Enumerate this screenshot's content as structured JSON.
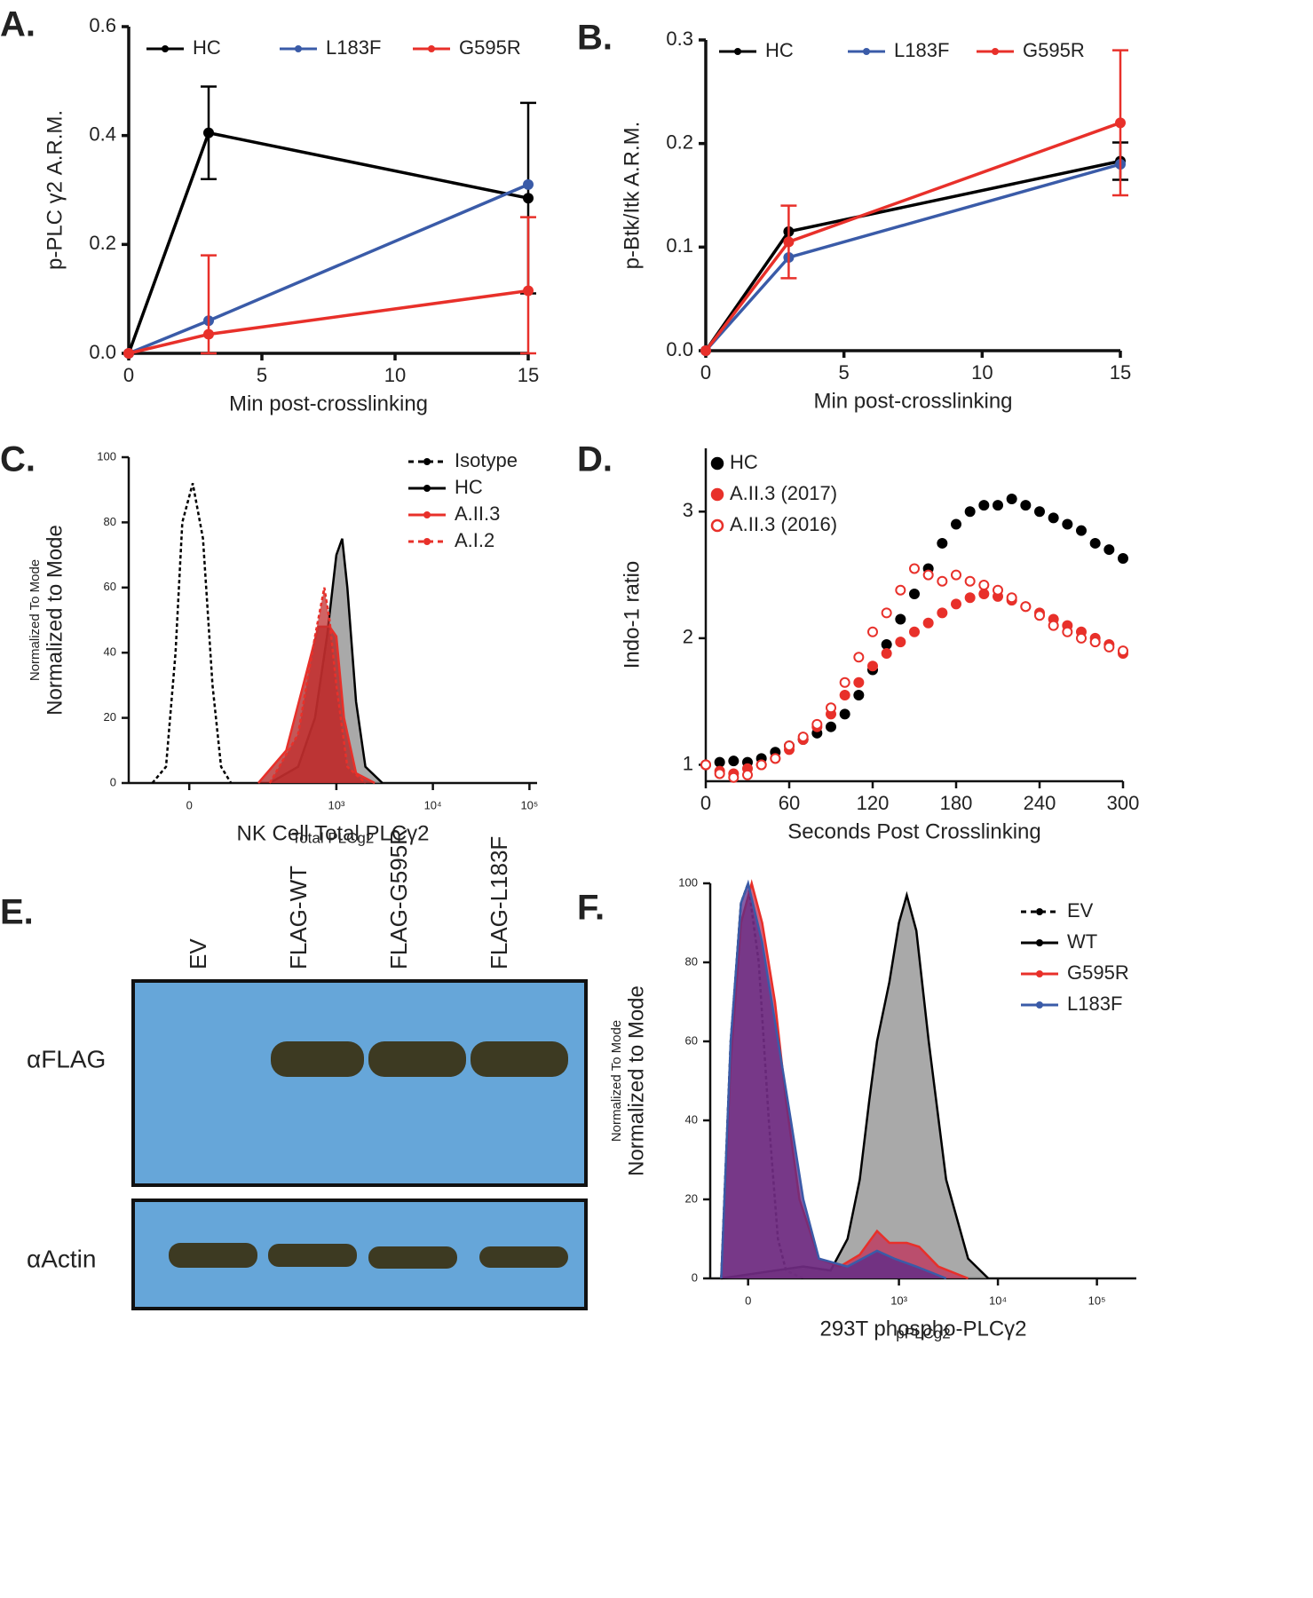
{
  "chart_data": [
    {
      "type": "line",
      "panel_label": "A.",
      "ylabel": "p-PLC γ2 A.R.M.",
      "xlabel": "Min post-crosslinking",
      "x": [
        0,
        3,
        15
      ],
      "xlim": [
        0,
        15
      ],
      "xticks": [
        0,
        5,
        10,
        15
      ],
      "ylim": [
        0,
        0.6
      ],
      "yticks": [
        {
          "value": 0,
          "label": "0.0"
        },
        0.2,
        0.4,
        0.6
      ],
      "legend": "top",
      "series": [
        {
          "name": "HC",
          "color": "#000000",
          "values": [
            0,
            0.405,
            0.285
          ],
          "errors": [
            null,
            0.085,
            0.175
          ]
        },
        {
          "name": "L183F",
          "color": "#3a5ba8",
          "values": [
            0,
            0.06,
            0.31
          ]
        },
        {
          "name": "G595R",
          "color": "#e8302a",
          "values": [
            0,
            0.035,
            0.115
          ],
          "errors": [
            null,
            0.145,
            0.135
          ]
        }
      ]
    },
    {
      "type": "line",
      "panel_label": "B.",
      "ylabel": "p-Btk/Itk A.R.M.",
      "xlabel": "Min post-crosslinking",
      "x": [
        0,
        3,
        15
      ],
      "xlim": [
        0,
        15
      ],
      "xticks": [
        0,
        5,
        10,
        15
      ],
      "ylim": [
        0,
        0.3
      ],
      "yticks": [
        {
          "value": 0,
          "label": "0.0"
        },
        0.1,
        0.2,
        0.3
      ],
      "legend": "top",
      "series": [
        {
          "name": "HC",
          "color": "#000000",
          "values": [
            0,
            0.115,
            0.183
          ],
          "errors": [
            null,
            null,
            0.018
          ]
        },
        {
          "name": "L183F",
          "color": "#3a5ba8",
          "values": [
            0,
            0.09,
            0.18
          ]
        },
        {
          "name": "G595R",
          "color": "#e8302a",
          "values": [
            0,
            0.105,
            0.22
          ],
          "errors": [
            null,
            0.035,
            0.07
          ]
        }
      ]
    },
    {
      "type": "area",
      "panel_label": "C.",
      "ylabel": "Normalized to Mode",
      "ylabel_small": "Normalized To Mode",
      "xlabel": "NK Cell Total PLCγ2",
      "xlabel_small": "Total PLCg2",
      "xscale": "biexponential",
      "xlim": [
        -120,
        120000
      ],
      "xticks": [
        0,
        {
          "value": 1000,
          "label": "10³"
        },
        {
          "value": 10000,
          "label": "10⁴"
        },
        {
          "value": 100000,
          "label": "10⁵"
        }
      ],
      "ylim": [
        0,
        100
      ],
      "yticks": [
        0,
        20,
        40,
        60,
        80,
        100
      ],
      "legend": "top-right",
      "series": [
        {
          "name": "Isotype",
          "color": "#000000",
          "dash": true,
          "x": [
            -60,
            -35,
            -20,
            -10,
            5,
            20,
            35,
            50,
            70
          ],
          "values": [
            0,
            5,
            40,
            80,
            92,
            75,
            30,
            5,
            0
          ]
        },
        {
          "name": "HC",
          "color": "#000000",
          "fill": "#8c8c8c",
          "x": [
            200,
            400,
            600,
            800,
            1000,
            1150,
            1300,
            1600,
            2000,
            3000
          ],
          "values": [
            0,
            5,
            20,
            45,
            70,
            75,
            60,
            25,
            5,
            0
          ]
        },
        {
          "name": "A.II.3",
          "color": "#e8302a",
          "fill": "#b02020",
          "x": [
            150,
            300,
            500,
            650,
            850,
            1000,
            1200,
            1600,
            2500
          ],
          "values": [
            0,
            10,
            35,
            48,
            48,
            45,
            20,
            3,
            0
          ]
        },
        {
          "name": "A.I.2",
          "color": "#e8302a",
          "dash": true,
          "fill": "#c03030",
          "x": [
            200,
            400,
            600,
            750,
            850,
            1000,
            1300,
            2000
          ],
          "values": [
            0,
            15,
            45,
            60,
            50,
            30,
            5,
            0
          ]
        }
      ]
    },
    {
      "type": "scatter",
      "panel_label": "D.",
      "ylabel": "Indo-1 ratio",
      "xlabel": "Seconds Post Crosslinking",
      "x": [
        0,
        10,
        20,
        30,
        40,
        50,
        60,
        70,
        80,
        90,
        100,
        110,
        120,
        130,
        140,
        150,
        160,
        170,
        180,
        190,
        200,
        210,
        220,
        230,
        240,
        250,
        260,
        270,
        280,
        290,
        300
      ],
      "xlim": [
        0,
        300
      ],
      "xticks": [
        0,
        60,
        120,
        180,
        240,
        300
      ],
      "ylim": [
        0.87,
        3.5
      ],
      "yticks": [
        1,
        2,
        3
      ],
      "legend": "top-left",
      "series": [
        {
          "name": "HC",
          "color": "#000000",
          "marker": "filled",
          "values": [
            1.0,
            1.02,
            1.03,
            1.02,
            1.05,
            1.1,
            1.15,
            1.2,
            1.25,
            1.3,
            1.4,
            1.55,
            1.75,
            1.95,
            2.15,
            2.35,
            2.55,
            2.75,
            2.9,
            3.0,
            3.05,
            3.05,
            3.1,
            3.05,
            3.0,
            2.95,
            2.9,
            2.85,
            2.75,
            2.7,
            2.63
          ]
        },
        {
          "name": "A.II.3 (2017)",
          "color": "#e8302a",
          "marker": "filled",
          "values": [
            1.0,
            0.95,
            0.93,
            0.97,
            1.0,
            1.05,
            1.12,
            1.2,
            1.3,
            1.4,
            1.55,
            1.65,
            1.78,
            1.88,
            1.97,
            2.05,
            2.12,
            2.2,
            2.27,
            2.32,
            2.35,
            2.33,
            2.3,
            2.25,
            2.2,
            2.15,
            2.1,
            2.05,
            2.0,
            1.95,
            1.88
          ]
        },
        {
          "name": "A.II.3 (2016)",
          "color": "#e8302a",
          "marker": "open",
          "values": [
            1.0,
            0.93,
            0.9,
            0.92,
            1.0,
            1.05,
            1.15,
            1.22,
            1.32,
            1.45,
            1.65,
            1.85,
            2.05,
            2.2,
            2.38,
            2.55,
            2.5,
            2.45,
            2.5,
            2.45,
            2.42,
            2.38,
            2.32,
            2.25,
            2.18,
            2.1,
            2.05,
            2.0,
            1.97,
            1.93,
            1.9
          ]
        }
      ]
    },
    {
      "type": "area",
      "panel_label": "F.",
      "ylabel": "Normalized to Mode",
      "ylabel_small": "Normalized To Mode",
      "xlabel": "293T phospho-PLCγ2",
      "xlabel_small": "pPLCg2",
      "xscale": "biexponential",
      "xlim": [
        -60,
        250000
      ],
      "xticks": [
        0,
        {
          "value": 1000,
          "label": "10³"
        },
        {
          "value": 10000,
          "label": "10⁴"
        },
        {
          "value": 100000,
          "label": "10⁵"
        }
      ],
      "ylim": [
        0,
        100
      ],
      "yticks": [
        0,
        20,
        40,
        60,
        80,
        100
      ],
      "legend": "right",
      "series": [
        {
          "name": "EV",
          "color": "#000000",
          "dash": true,
          "x": [
            -40,
            -25,
            -10,
            0,
            15,
            30,
            45,
            60,
            100
          ],
          "values": [
            0,
            60,
            95,
            100,
            80,
            40,
            10,
            2,
            0
          ]
        },
        {
          "name": "WT",
          "color": "#000000",
          "fill": "#8c8c8c",
          "x": [
            -40,
            0,
            100,
            200,
            300,
            400,
            500,
            600,
            800,
            1000,
            1200,
            1500,
            2000,
            3000,
            5000,
            8000
          ],
          "values": [
            0,
            1,
            3,
            2,
            10,
            25,
            45,
            60,
            75,
            90,
            97,
            88,
            60,
            25,
            5,
            0
          ]
        },
        {
          "name": "G595R",
          "color": "#e8302a",
          "fill": "#c0305a",
          "x": [
            -40,
            -25,
            -10,
            5,
            20,
            40,
            60,
            90,
            150,
            250,
            400,
            600,
            800,
            1200,
            1600,
            2500,
            5000
          ],
          "values": [
            0,
            55,
            90,
            100,
            90,
            70,
            45,
            20,
            5,
            3,
            6,
            12,
            9,
            9,
            8,
            3,
            0
          ]
        },
        {
          "name": "L183F",
          "color": "#3a5ba8",
          "fill": "#5a2a8a",
          "x": [
            -40,
            -25,
            -10,
            0,
            20,
            40,
            70,
            100,
            150,
            300,
            600,
            900,
            1500,
            3000
          ],
          "values": [
            0,
            60,
            95,
            100,
            85,
            65,
            40,
            20,
            5,
            3,
            7,
            5,
            3,
            0
          ]
        }
      ]
    }
  ],
  "blot": {
    "panel_label": "E.",
    "lanes": [
      "EV",
      "FLAG-WT",
      "FLAG-G595R",
      "FLAG-L183F"
    ],
    "rows": [
      "αFLAG",
      "αActin"
    ]
  }
}
